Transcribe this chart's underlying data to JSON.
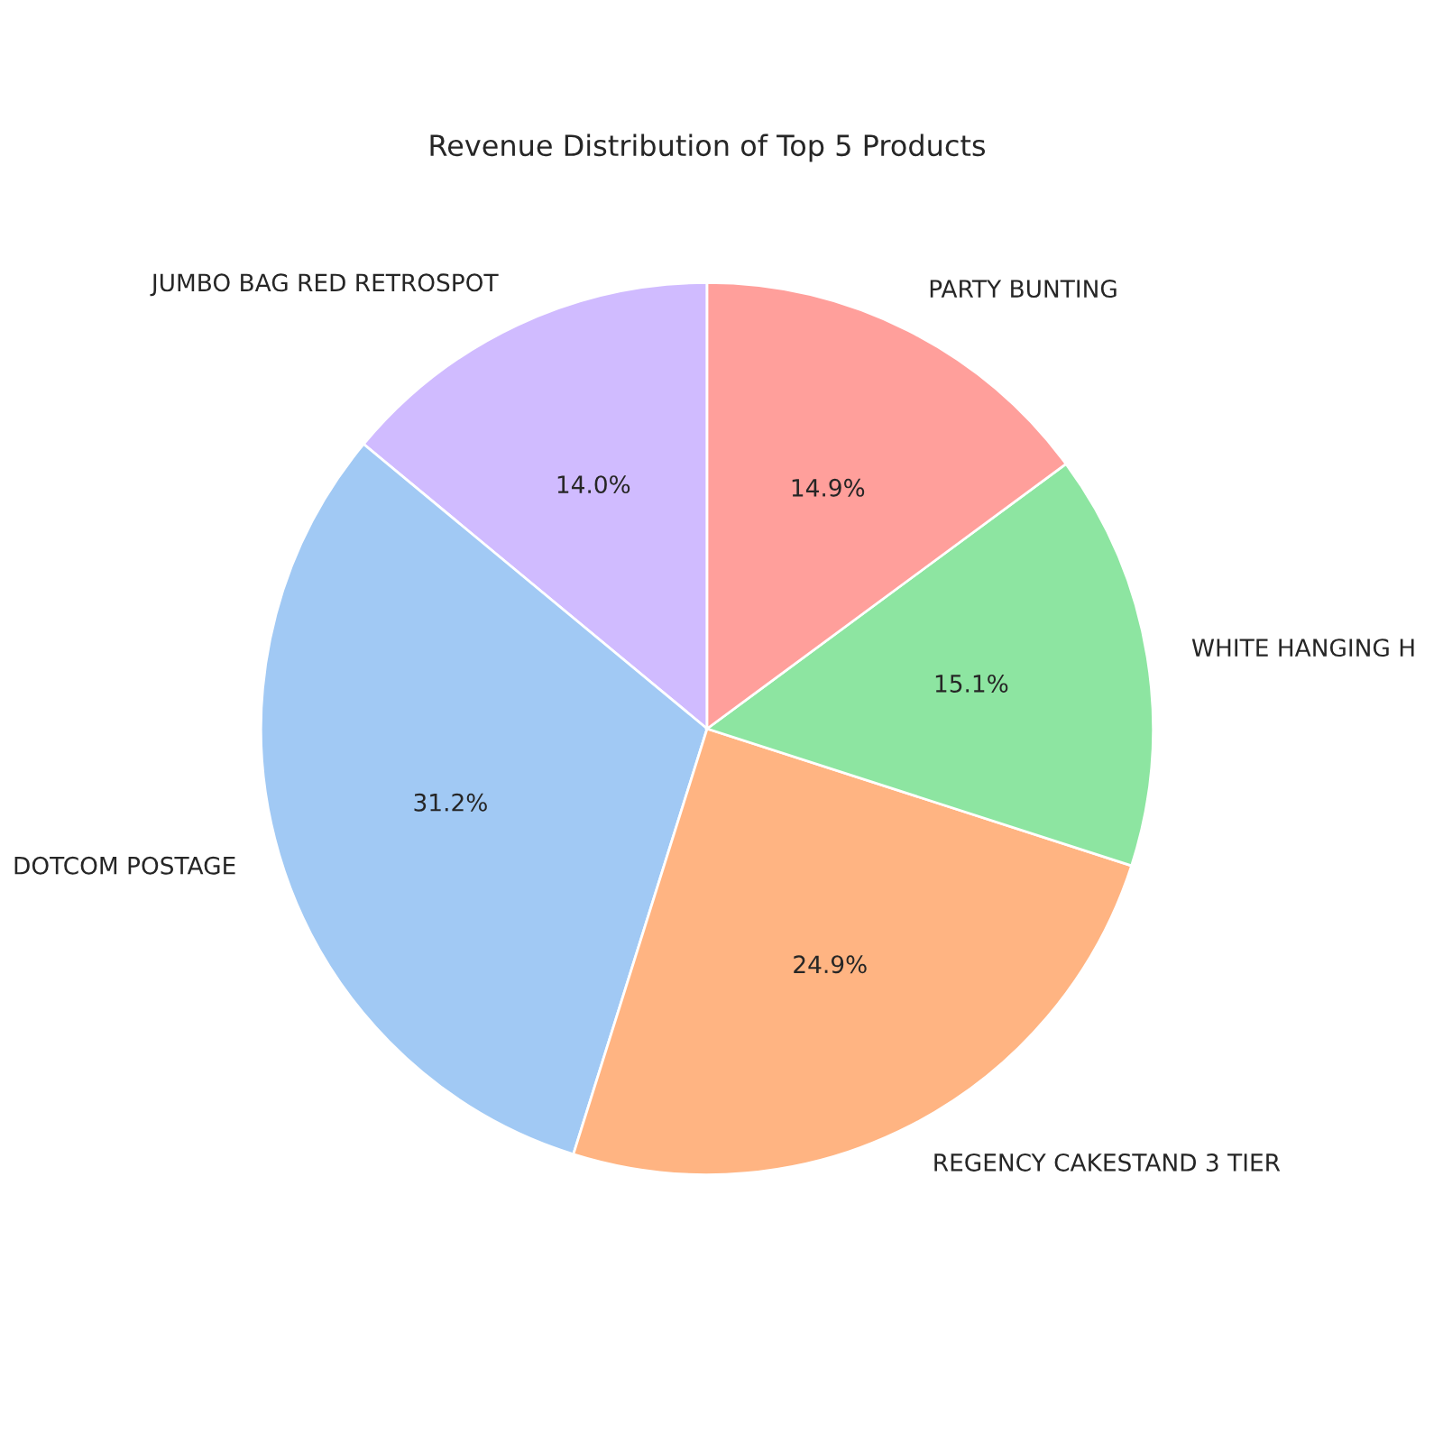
{
  "chart_data": {
    "type": "pie",
    "title": "Revenue Distribution of Top 5 Products",
    "categories": [
      "JUMBO BAG RED RETROSPOT",
      "DOTCOM POSTAGE",
      "REGENCY CAKESTAND 3 TIER",
      "WHITE HANGING H",
      "PARTY BUNTING"
    ],
    "values": [
      14.0,
      31.2,
      24.9,
      15.1,
      14.9
    ],
    "value_labels": [
      "14.0%",
      "31.2%",
      "24.9%",
      "15.1%",
      "14.9%"
    ],
    "colors": [
      "#d0bbff",
      "#a1c9f4",
      "#ffb482",
      "#8de5a1",
      "#ff9f9b"
    ]
  }
}
